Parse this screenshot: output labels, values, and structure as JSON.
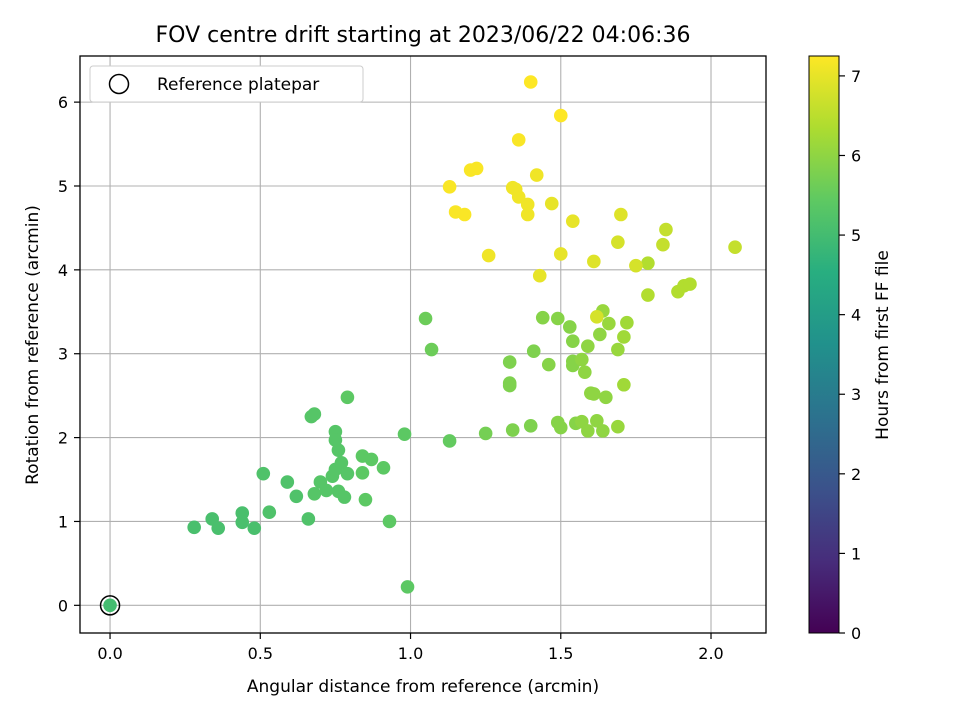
{
  "chart_data": {
    "type": "scatter",
    "title": "FOV centre drift starting at 2023/06/22 04:06:36",
    "xlabel": "Angular distance from reference (arcmin)",
    "ylabel": "Rotation from reference (arcmin)",
    "xlim": [
      -0.1,
      2.183
    ],
    "ylim": [
      -0.33,
      6.55
    ],
    "x_ticks": [
      0.0,
      0.5,
      1.0,
      1.5,
      2.0
    ],
    "x_tick_labels": [
      "0.0",
      "0.5",
      "1.0",
      "1.5",
      "2.0"
    ],
    "y_ticks": [
      0,
      1,
      2,
      3,
      4,
      5,
      6
    ],
    "y_tick_labels": [
      "0",
      "1",
      "2",
      "3",
      "4",
      "5",
      "6"
    ],
    "grid": true,
    "legend": {
      "position": "top-left",
      "entries": [
        "Reference platepar"
      ]
    },
    "colorbar": {
      "label": "Hours from first FF file",
      "colormap": "viridis",
      "range": [
        0,
        7.25
      ],
      "ticks": [
        0,
        1,
        2,
        3,
        4,
        5,
        6,
        7
      ],
      "tick_labels": [
        "0",
        "1",
        "2",
        "3",
        "4",
        "5",
        "6",
        "7"
      ]
    },
    "reference_point": {
      "x": 0.0,
      "y": 0.0,
      "label": "Reference platepar"
    },
    "points": [
      {
        "x": 0.0,
        "y": 0.0,
        "h": 5.0
      },
      {
        "x": 0.28,
        "y": 0.93,
        "h": 5.1
      },
      {
        "x": 0.34,
        "y": 1.03,
        "h": 5.1
      },
      {
        "x": 0.36,
        "y": 0.92,
        "h": 5.1
      },
      {
        "x": 0.44,
        "y": 1.1,
        "h": 5.1
      },
      {
        "x": 0.44,
        "y": 0.99,
        "h": 5.1
      },
      {
        "x": 0.48,
        "y": 0.92,
        "h": 5.1
      },
      {
        "x": 0.51,
        "y": 1.57,
        "h": 5.2
      },
      {
        "x": 0.53,
        "y": 1.11,
        "h": 5.2
      },
      {
        "x": 0.59,
        "y": 1.47,
        "h": 5.2
      },
      {
        "x": 0.62,
        "y": 1.3,
        "h": 5.2
      },
      {
        "x": 0.66,
        "y": 1.03,
        "h": 5.2
      },
      {
        "x": 0.67,
        "y": 2.25,
        "h": 5.3
      },
      {
        "x": 0.68,
        "y": 2.28,
        "h": 5.3
      },
      {
        "x": 0.68,
        "y": 1.33,
        "h": 5.3
      },
      {
        "x": 0.7,
        "y": 1.47,
        "h": 5.3
      },
      {
        "x": 0.72,
        "y": 1.37,
        "h": 5.3
      },
      {
        "x": 0.74,
        "y": 1.54,
        "h": 5.3
      },
      {
        "x": 0.75,
        "y": 2.07,
        "h": 5.3
      },
      {
        "x": 0.75,
        "y": 1.97,
        "h": 5.3
      },
      {
        "x": 0.75,
        "y": 1.62,
        "h": 5.3
      },
      {
        "x": 0.76,
        "y": 1.85,
        "h": 5.3
      },
      {
        "x": 0.76,
        "y": 1.36,
        "h": 5.3
      },
      {
        "x": 0.77,
        "y": 1.7,
        "h": 5.3
      },
      {
        "x": 0.78,
        "y": 1.29,
        "h": 5.3
      },
      {
        "x": 0.79,
        "y": 2.48,
        "h": 5.4
      },
      {
        "x": 0.79,
        "y": 1.57,
        "h": 5.3
      },
      {
        "x": 0.84,
        "y": 1.78,
        "h": 5.4
      },
      {
        "x": 0.84,
        "y": 1.58,
        "h": 5.4
      },
      {
        "x": 0.85,
        "y": 1.26,
        "h": 5.4
      },
      {
        "x": 0.87,
        "y": 1.74,
        "h": 5.4
      },
      {
        "x": 0.91,
        "y": 1.64,
        "h": 5.4
      },
      {
        "x": 0.93,
        "y": 1.0,
        "h": 5.4
      },
      {
        "x": 0.98,
        "y": 2.04,
        "h": 5.4
      },
      {
        "x": 0.99,
        "y": 0.22,
        "h": 5.4
      },
      {
        "x": 1.05,
        "y": 3.42,
        "h": 5.6
      },
      {
        "x": 1.07,
        "y": 3.05,
        "h": 5.6
      },
      {
        "x": 1.13,
        "y": 1.96,
        "h": 5.5
      },
      {
        "x": 1.25,
        "y": 2.05,
        "h": 5.7
      },
      {
        "x": 1.33,
        "y": 2.9,
        "h": 5.8
      },
      {
        "x": 1.33,
        "y": 2.65,
        "h": 5.8
      },
      {
        "x": 1.33,
        "y": 2.62,
        "h": 5.8
      },
      {
        "x": 1.34,
        "y": 2.09,
        "h": 5.8
      },
      {
        "x": 1.4,
        "y": 2.14,
        "h": 5.8
      },
      {
        "x": 1.41,
        "y": 3.03,
        "h": 5.8
      },
      {
        "x": 1.44,
        "y": 3.43,
        "h": 5.9
      },
      {
        "x": 1.46,
        "y": 2.87,
        "h": 5.9
      },
      {
        "x": 1.49,
        "y": 3.42,
        "h": 5.9
      },
      {
        "x": 1.49,
        "y": 2.18,
        "h": 5.9
      },
      {
        "x": 1.5,
        "y": 2.12,
        "h": 5.9
      },
      {
        "x": 1.53,
        "y": 3.32,
        "h": 5.9
      },
      {
        "x": 1.54,
        "y": 3.15,
        "h": 5.9
      },
      {
        "x": 1.54,
        "y": 2.91,
        "h": 5.9
      },
      {
        "x": 1.54,
        "y": 2.86,
        "h": 5.9
      },
      {
        "x": 1.55,
        "y": 2.17,
        "h": 5.9
      },
      {
        "x": 1.57,
        "y": 2.93,
        "h": 6.0
      },
      {
        "x": 1.57,
        "y": 2.19,
        "h": 6.0
      },
      {
        "x": 1.58,
        "y": 2.78,
        "h": 6.0
      },
      {
        "x": 1.59,
        "y": 3.09,
        "h": 6.0
      },
      {
        "x": 1.59,
        "y": 2.08,
        "h": 6.0
      },
      {
        "x": 1.6,
        "y": 2.53,
        "h": 6.0
      },
      {
        "x": 1.61,
        "y": 2.52,
        "h": 6.0
      },
      {
        "x": 1.62,
        "y": 2.2,
        "h": 6.0
      },
      {
        "x": 1.63,
        "y": 3.23,
        "h": 6.0
      },
      {
        "x": 1.64,
        "y": 3.51,
        "h": 6.1
      },
      {
        "x": 1.64,
        "y": 2.08,
        "h": 6.0
      },
      {
        "x": 1.65,
        "y": 2.48,
        "h": 6.0
      },
      {
        "x": 1.66,
        "y": 3.36,
        "h": 6.1
      },
      {
        "x": 1.69,
        "y": 3.05,
        "h": 6.1
      },
      {
        "x": 1.69,
        "y": 2.13,
        "h": 6.1
      },
      {
        "x": 1.71,
        "y": 3.2,
        "h": 6.2
      },
      {
        "x": 1.71,
        "y": 2.63,
        "h": 6.2
      },
      {
        "x": 1.72,
        "y": 3.37,
        "h": 6.2
      },
      {
        "x": 1.62,
        "y": 3.44,
        "h": 6.8
      },
      {
        "x": 1.79,
        "y": 4.08,
        "h": 6.4
      },
      {
        "x": 1.79,
        "y": 3.7,
        "h": 6.4
      },
      {
        "x": 1.84,
        "y": 4.3,
        "h": 6.6
      },
      {
        "x": 1.85,
        "y": 4.48,
        "h": 6.6
      },
      {
        "x": 1.89,
        "y": 3.74,
        "h": 6.4
      },
      {
        "x": 1.91,
        "y": 3.81,
        "h": 6.4
      },
      {
        "x": 1.93,
        "y": 3.83,
        "h": 6.4
      },
      {
        "x": 2.08,
        "y": 4.27,
        "h": 6.6
      },
      {
        "x": 1.69,
        "y": 4.33,
        "h": 6.8
      },
      {
        "x": 1.7,
        "y": 4.66,
        "h": 6.9
      },
      {
        "x": 1.75,
        "y": 4.05,
        "h": 6.8
      },
      {
        "x": 1.61,
        "y": 4.1,
        "h": 6.9
      },
      {
        "x": 1.54,
        "y": 4.58,
        "h": 7.0
      },
      {
        "x": 1.5,
        "y": 4.19,
        "h": 7.0
      },
      {
        "x": 1.47,
        "y": 4.79,
        "h": 7.0
      },
      {
        "x": 1.43,
        "y": 3.93,
        "h": 7.0
      },
      {
        "x": 1.42,
        "y": 5.13,
        "h": 7.1
      },
      {
        "x": 1.39,
        "y": 4.78,
        "h": 7.1
      },
      {
        "x": 1.39,
        "y": 4.66,
        "h": 7.1
      },
      {
        "x": 1.36,
        "y": 4.87,
        "h": 7.1
      },
      {
        "x": 1.35,
        "y": 4.96,
        "h": 7.1
      },
      {
        "x": 1.34,
        "y": 4.98,
        "h": 7.1
      },
      {
        "x": 1.36,
        "y": 5.55,
        "h": 7.2
      },
      {
        "x": 1.26,
        "y": 4.17,
        "h": 7.1
      },
      {
        "x": 1.22,
        "y": 5.21,
        "h": 7.2
      },
      {
        "x": 1.2,
        "y": 5.19,
        "h": 7.2
      },
      {
        "x": 1.18,
        "y": 4.66,
        "h": 7.2
      },
      {
        "x": 1.15,
        "y": 4.69,
        "h": 7.2
      },
      {
        "x": 1.13,
        "y": 4.99,
        "h": 7.2
      },
      {
        "x": 1.4,
        "y": 6.24,
        "h": 7.25
      },
      {
        "x": 1.5,
        "y": 5.84,
        "h": 7.25
      }
    ]
  }
}
